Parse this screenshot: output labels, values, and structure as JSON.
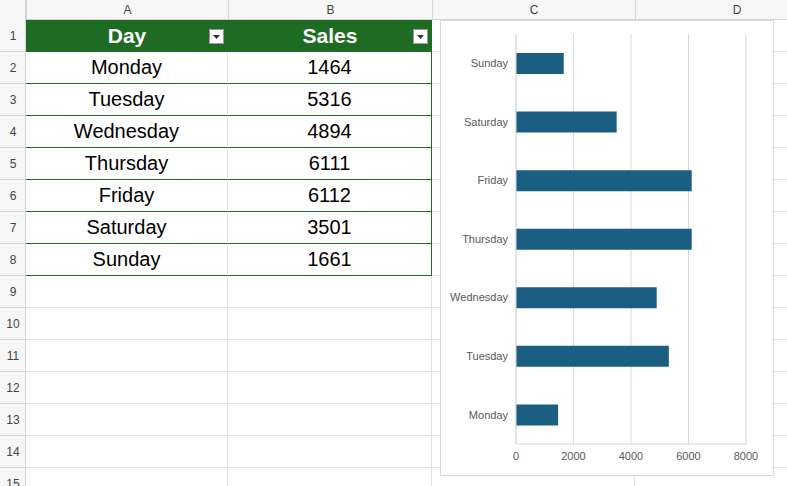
{
  "sheet": {
    "columns": [
      "A",
      "B",
      "C",
      "D"
    ],
    "rows": [
      1,
      2,
      3,
      4,
      5,
      6,
      7,
      8,
      9,
      10,
      11,
      12,
      13,
      14,
      15
    ]
  },
  "table": {
    "header": [
      "Day",
      "Sales"
    ],
    "rows": [
      [
        "Monday",
        1464
      ],
      [
        "Tuesday",
        5316
      ],
      [
        "Wednesday",
        4894
      ],
      [
        "Thursday",
        6111
      ],
      [
        "Friday",
        6112
      ],
      [
        "Saturday",
        3501
      ],
      [
        "Sunday",
        1661
      ]
    ]
  },
  "chart_data": {
    "type": "bar",
    "orientation": "horizontal",
    "categories": [
      "Monday",
      "Tuesday",
      "Wednesday",
      "Thursday",
      "Friday",
      "Saturday",
      "Sunday"
    ],
    "values": [
      1464,
      5316,
      4894,
      6111,
      6112,
      3501,
      1661
    ],
    "color": "#1a5e82",
    "xlim": [
      0,
      8000
    ],
    "xticks": [
      0,
      2000,
      4000,
      6000,
      8000
    ],
    "grid": true
  }
}
